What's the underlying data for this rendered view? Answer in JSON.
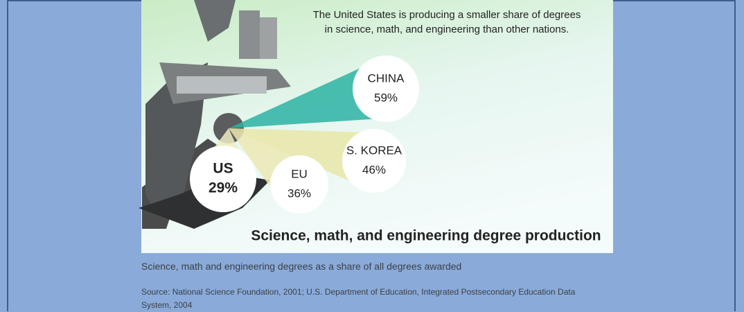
{
  "chart_data": {
    "type": "radial-bubbles",
    "subtitle": "The United States is producing a smaller share of degrees in science, math, and engineering than other nations.",
    "title": "Science, math, and engineering degree production",
    "categories": [
      "CHINA",
      "S. KOREA",
      "EU",
      "US"
    ],
    "values": [
      59,
      46,
      36,
      29
    ],
    "value_labels": [
      "59%",
      "46%",
      "36%",
      "29%"
    ],
    "colors": [
      "#2bb3a3",
      "#e9e6a8",
      "#ece9b4",
      "#f0ecc0"
    ]
  },
  "caption": "Science, math and engineering degrees as a share of all degrees awarded",
  "source": "Source: National Science Foundation, 2001; U.S. Department of Education, Integrated Postsecondary Education Data System, 2004"
}
